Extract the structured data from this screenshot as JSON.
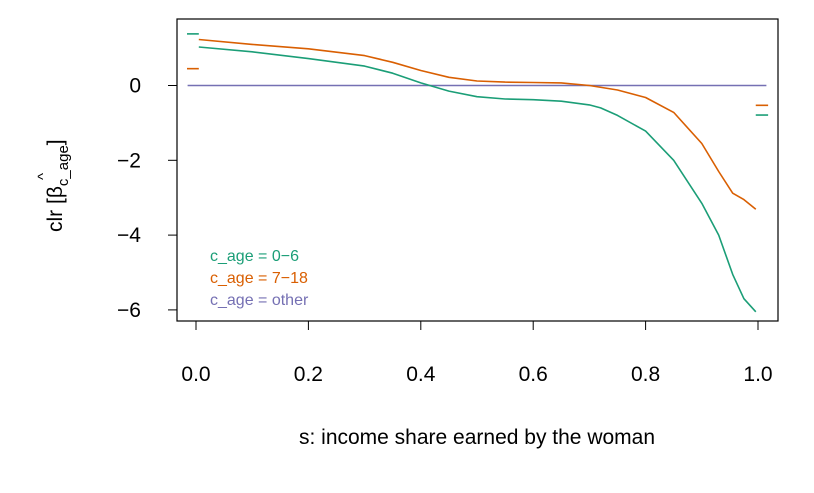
{
  "chart_data": {
    "type": "line",
    "xlabel": "s: income share earned by the woman",
    "ylabel_main": "clr [",
    "ylabel_symbol": "β",
    "ylabel_hat": "^",
    "ylabel_subscript": "c_age",
    "ylabel_close": "]",
    "xlim": [
      -0.035,
      1.035
    ],
    "ylim": [
      -6.45,
      1.8
    ],
    "xticks": [
      "0.0",
      "0.2",
      "0.4",
      "0.6",
      "0.8",
      "1.0"
    ],
    "xtick_values": [
      0,
      0.2,
      0.4,
      0.6,
      0.8,
      1.0
    ],
    "yticks": [
      "−6",
      "−4",
      "−2",
      "0"
    ],
    "ytick_values": [
      -6,
      -4,
      -2,
      0
    ],
    "grid": false,
    "legend_position": "bottom-left",
    "series": [
      {
        "name": "c_age = 0−6",
        "color": "#1b9e77",
        "x": [
          0.005,
          0.1,
          0.2,
          0.3,
          0.35,
          0.4,
          0.45,
          0.5,
          0.55,
          0.6,
          0.65,
          0.7,
          0.72,
          0.75,
          0.8,
          0.85,
          0.9,
          0.93,
          0.955,
          0.975,
          0.996
        ],
        "y": [
          1.03,
          0.9,
          0.72,
          0.52,
          0.33,
          0.07,
          -0.15,
          -0.3,
          -0.36,
          -0.38,
          -0.42,
          -0.52,
          -0.6,
          -0.8,
          -1.22,
          -2.0,
          -3.15,
          -4.0,
          -5.05,
          -5.7,
          -6.05
        ],
        "edge_marks": {
          "left": 1.38,
          "right": -0.79
        }
      },
      {
        "name": "c_age = 7−18",
        "color": "#d95f02",
        "x": [
          0.005,
          0.1,
          0.2,
          0.3,
          0.35,
          0.4,
          0.45,
          0.5,
          0.55,
          0.6,
          0.65,
          0.7,
          0.75,
          0.8,
          0.85,
          0.9,
          0.93,
          0.955,
          0.975,
          0.996
        ],
        "y": [
          1.23,
          1.1,
          0.98,
          0.8,
          0.62,
          0.4,
          0.22,
          0.12,
          0.09,
          0.08,
          0.07,
          0.0,
          -0.12,
          -0.32,
          -0.72,
          -1.55,
          -2.3,
          -2.88,
          -3.05,
          -3.31
        ],
        "edge_marks": {
          "left": 0.45,
          "right": -0.53
        }
      },
      {
        "name": "c_age = other",
        "color": "#7570b3",
        "x": [
          -0.015,
          1.015
        ],
        "y": [
          0,
          0
        ]
      }
    ]
  }
}
